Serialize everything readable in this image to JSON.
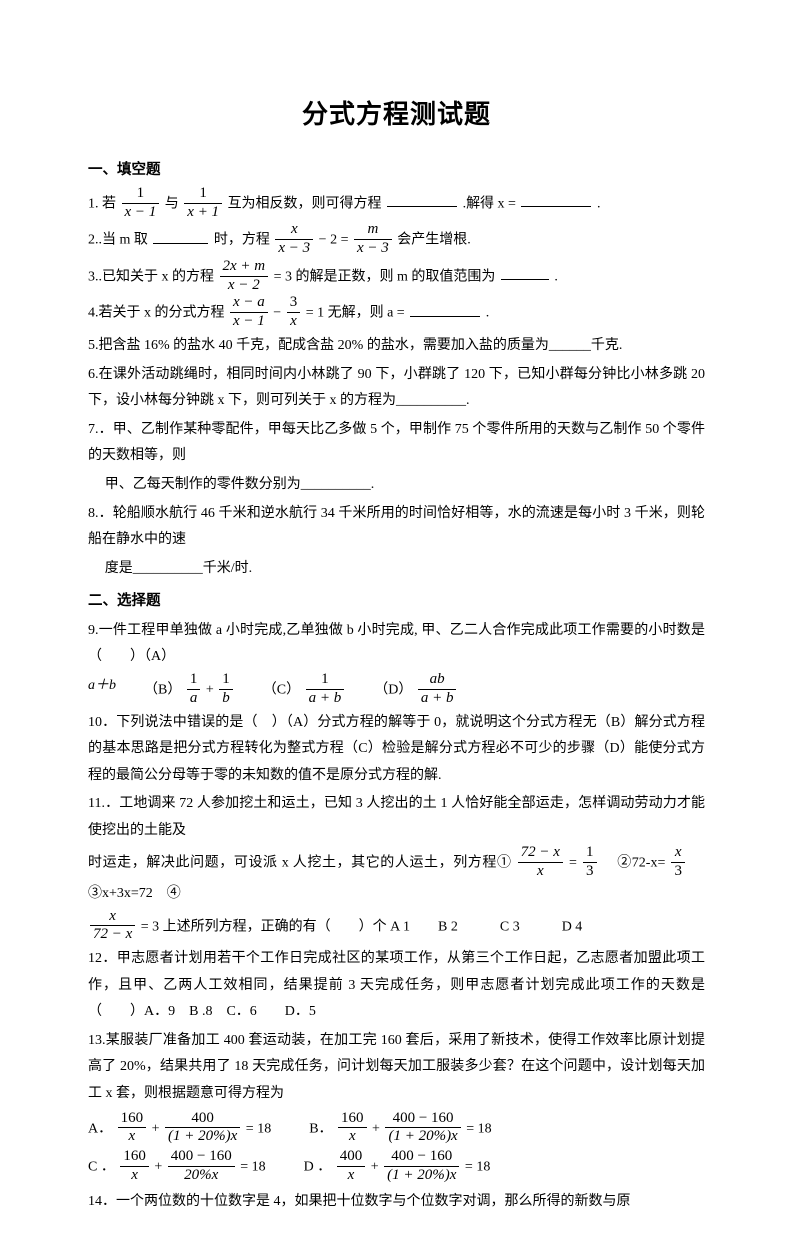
{
  "title": "分式方程测试题",
  "sections": {
    "s1": "一、填空题",
    "s2": "二、选择题"
  },
  "q1": {
    "pre": "1. 若",
    "f1n": "1",
    "f1d": "x − 1",
    "mid1": "与",
    "f2n": "1",
    "f2d": "x + 1",
    "post": "互为相反数，则可得方程",
    "post2": ".解得 x =",
    "end": "."
  },
  "q2": {
    "pre": "2..当 m 取",
    "mid": "时，方程",
    "f1n": "x",
    "f1d": "x − 3",
    "mid2": "− 2 =",
    "f2n": "m",
    "f2d": "x − 3",
    "post": "会产生增根."
  },
  "q3": {
    "pre": "3..已知关于 x 的方程",
    "fn": "2x + m",
    "fd": "x − 2",
    "mid": "= 3 的解是正数，则 m 的取值范围为",
    "end": "."
  },
  "q4": {
    "pre": "4.若关于 x 的分式方程",
    "f1n": "x − a",
    "f1d": "x − 1",
    "mid": "−",
    "f2n": "3",
    "f2d": "x",
    "post": "= 1 无解，则 a =",
    "end": "."
  },
  "q5": "5.把含盐 16% 的盐水 40 千克，配成含盐 20% 的盐水，需要加入盐的质量为______千克.",
  "q6": "6.在课外活动跳绳时，相同时间内小林跳了 90 下，小群跳了 120 下，已知小群每分钟比小林多跳 20 下，设小林每分钟跳 x 下，则可列关于 x 的方程为__________.",
  "q7a": "7.．甲、乙制作某种零配件，甲每天比乙多做 5 个，甲制作 75 个零件所用的天数与乙制作 50 个零件的天数相等，则",
  "q7b": "甲、乙每天制作的零件数分别为__________.",
  "q8a": "8.．轮船顺水航行 46 千米和逆水航行 34 千米所用的时间恰好相等，水的流速是每小时 3 千米，则轮船在静水中的速",
  "q8b": "度是__________千米/时.",
  "q9": {
    "line": "9.一件工程甲单独做 a 小时完成,乙单独做 b 小时完成, 甲、乙二人合作完成此项工作需要的小时数是（　　）（A）",
    "opts": {
      "A": "a＋b",
      "B": "（B）",
      "Bf1n": "1",
      "Bf1d": "a",
      "Bplus": "+",
      "Bf2n": "1",
      "Bf2d": "b",
      "C": "（C）",
      "Cfn": "1",
      "Cfd": "a + b",
      "D": "（D）",
      "Dfn": "ab",
      "Dfd": "a + b"
    }
  },
  "q10": "10．下列说法中错误的是（　）（A）分式方程的解等于 0，就说明这个分式方程无（B）解分式方程的基本思路是把分式方程转化为整式方程（C）检验是解分式方程必不可少的步骤（D）能使分式方程的最简公分母等于零的未知数的值不是原分式方程的解.",
  "q11": {
    "a": "11.．工地调来 72 人参加挖土和运土，已知 3 人挖出的土 1 人恰好能全部运走，怎样调动劳动力才能使挖出的土能及",
    "b_pre": "时运走，解决此问题，可设派 x 人挖土，其它的人运土，列方程①",
    "f1n": "72 − x",
    "f1d": "x",
    "mid1": "=",
    "f2n": "1",
    "f2d": "3",
    "mid2": "　②72-x=",
    "f3n": "x",
    "f3d": "3",
    "mid3": "　③x+3x=72　④",
    "c_f_n": "x",
    "c_f_d": "72 − x",
    "c_post": "= 3 上述所列方程，正确的有（　　）个 A 1　　B 2　　　C 3　　　D 4"
  },
  "q12": "12．甲志愿者计划用若干个工作日完成社区的某项工作，从第三个工作日起，乙志愿者加盟此项工作，且甲、乙两人工效相同，结果提前 3 天完成任务，则甲志愿者计划完成此项工作的天数是（　　）A．9　B .8　C．6　　D．5",
  "q13_intro": "13.某服装厂准备加工 400 套运动装，在加工完 160 套后，采用了新技术，使得工作效率比原计划提高了 20%，结果共用了 18 天完成任务，问计划每天加工服装多少套？在这个问题中，设计划每天加工 x 套，则根据题意可得方程为",
  "q13": {
    "A": "A．",
    "B": "B．",
    "C": "C ．",
    "D": "D ．",
    "A1n": "160",
    "A1d": "x",
    "A2n": "400",
    "A2d": "(1 + 20%)x",
    "Aeq": "= 18",
    "B1n": "160",
    "B1d": "x",
    "B2n": "400 − 160",
    "B2d": "(1 + 20%)x",
    "Beq": "= 18",
    "C1n": "160",
    "C1d": "x",
    "C2n": "400 − 160",
    "C2d": "20%x",
    "Ceq": "= 18",
    "D1n": "400",
    "D1d": "x",
    "D2n": "400 − 160",
    "D2d": "(1 + 20%)x",
    "Deq": "= 18",
    "plus": "+"
  },
  "q14": "14．一个两位数的十位数字是 4，如果把十位数字与个位数字对调，那么所得的新数与原",
  "style": {
    "background_color": "#ffffff",
    "text_color": "#000000",
    "title_fontsize": 26,
    "body_fontsize": 14,
    "font_family": "SimSun"
  }
}
